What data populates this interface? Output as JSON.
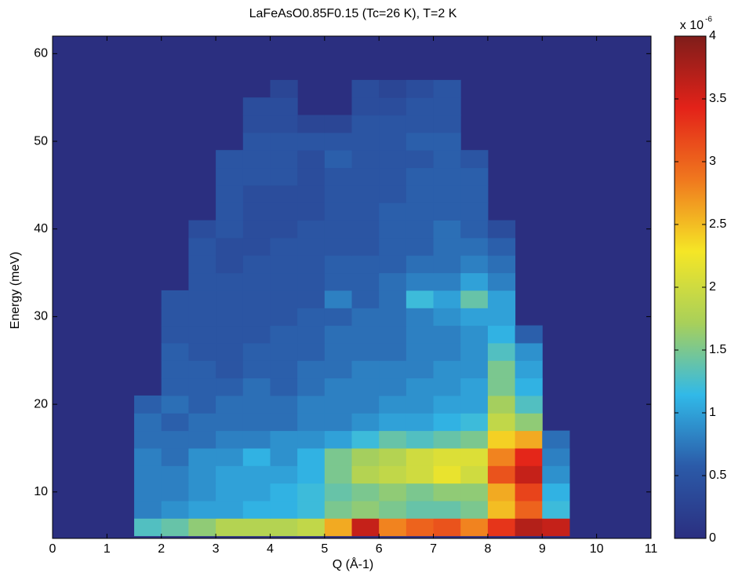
{
  "chart_data": {
    "type": "heatmap",
    "title": "LaFeAsO0.85F0.15 (Tc=26 K), T=2 K",
    "xlabel": "Q (Å-1)",
    "ylabel": "Energy (meV)",
    "xlim": [
      0,
      11
    ],
    "xticks": [
      0,
      1,
      2,
      3,
      4,
      5,
      6,
      7,
      8,
      9,
      10,
      11
    ],
    "ylim": [
      4.7,
      62
    ],
    "yticks": [
      10,
      20,
      30,
      40,
      50,
      60
    ],
    "x": [
      1.75,
      2.25,
      2.75,
      3.25,
      3.75,
      4.25,
      4.75,
      5.25,
      5.75,
      6.25,
      6.75,
      7.25,
      7.75,
      8.25,
      8.75,
      9.25
    ],
    "y": [
      6,
      8,
      10,
      12,
      14,
      16,
      18,
      20,
      22,
      24,
      26,
      28,
      30,
      32,
      34,
      36,
      38,
      40,
      42,
      44,
      46,
      48,
      50,
      52,
      54,
      56
    ],
    "z": [
      [
        1.3,
        1.4,
        1.6,
        1.8,
        1.8,
        1.8,
        1.9,
        2.6,
        3.6,
        2.8,
        3.0,
        3.1,
        2.8,
        3.3,
        3.7,
        3.6
      ],
      [
        0.8,
        0.9,
        1.0,
        1.0,
        1.1,
        1.1,
        1.2,
        1.5,
        1.6,
        1.5,
        1.4,
        1.4,
        1.5,
        2.5,
        3.0,
        1.2
      ],
      [
        0.8,
        0.8,
        0.9,
        1.0,
        1.0,
        1.1,
        1.2,
        1.4,
        1.5,
        1.6,
        1.5,
        1.6,
        1.6,
        2.6,
        3.2,
        1.1
      ],
      [
        0.8,
        0.8,
        0.9,
        1.0,
        1.0,
        1.0,
        1.1,
        1.5,
        1.8,
        1.9,
        2.0,
        2.2,
        2.0,
        3.1,
        3.6,
        0.9
      ],
      [
        0.8,
        0.7,
        0.9,
        0.9,
        1.1,
        0.9,
        1.1,
        1.5,
        1.7,
        1.8,
        2.0,
        2.1,
        2.1,
        2.8,
        3.4,
        0.8
      ],
      [
        0.7,
        0.7,
        0.7,
        0.8,
        0.8,
        0.9,
        0.9,
        1.0,
        1.2,
        1.4,
        1.3,
        1.4,
        1.5,
        2.4,
        2.6,
        0.7
      ],
      [
        0.7,
        0.6,
        0.7,
        0.7,
        0.7,
        0.7,
        0.8,
        0.8,
        0.9,
        1.0,
        1.0,
        1.1,
        1.2,
        1.9,
        1.6,
        null
      ],
      [
        0.6,
        0.7,
        0.6,
        0.7,
        0.7,
        0.7,
        0.8,
        0.8,
        0.8,
        0.9,
        0.9,
        1.0,
        1.0,
        1.7,
        1.3,
        null
      ],
      [
        null,
        0.6,
        0.6,
        0.6,
        0.7,
        0.6,
        0.7,
        0.8,
        0.8,
        0.8,
        0.9,
        0.9,
        1.0,
        1.5,
        1.1,
        null
      ],
      [
        null,
        0.6,
        0.6,
        0.5,
        0.6,
        0.6,
        0.7,
        0.7,
        0.8,
        0.8,
        0.8,
        0.9,
        0.9,
        1.5,
        1.0,
        null
      ],
      [
        null,
        0.6,
        0.5,
        0.5,
        0.6,
        0.6,
        0.6,
        0.7,
        0.7,
        0.7,
        0.8,
        0.8,
        0.9,
        1.3,
        0.9,
        null
      ],
      [
        null,
        0.5,
        0.5,
        0.5,
        0.5,
        0.6,
        0.6,
        0.7,
        0.7,
        0.7,
        0.8,
        0.8,
        0.9,
        1.1,
        0.6,
        null
      ],
      [
        null,
        0.5,
        0.5,
        0.5,
        0.5,
        0.5,
        0.6,
        0.6,
        0.7,
        0.7,
        0.8,
        0.9,
        1.0,
        1.0,
        null,
        null
      ],
      [
        null,
        0.5,
        0.5,
        0.5,
        0.5,
        0.5,
        0.5,
        0.8,
        0.6,
        0.7,
        1.2,
        1.0,
        1.4,
        1.0,
        null,
        null
      ],
      [
        null,
        null,
        0.5,
        0.5,
        0.5,
        0.5,
        0.5,
        0.6,
        0.6,
        0.7,
        0.8,
        0.8,
        1.0,
        0.8,
        null,
        null
      ],
      [
        null,
        null,
        0.5,
        0.4,
        0.5,
        0.5,
        0.5,
        0.6,
        0.6,
        0.6,
        0.7,
        0.7,
        0.8,
        0.7,
        null,
        null
      ],
      [
        null,
        null,
        0.5,
        0.4,
        0.4,
        0.5,
        0.5,
        0.5,
        0.5,
        0.6,
        0.6,
        0.7,
        0.7,
        0.6,
        null,
        null
      ],
      [
        null,
        null,
        0.4,
        0.5,
        0.4,
        0.4,
        0.5,
        0.5,
        0.5,
        0.6,
        0.6,
        0.7,
        0.6,
        0.4,
        null,
        null
      ],
      [
        null,
        null,
        null,
        0.5,
        0.4,
        0.4,
        0.4,
        0.5,
        0.5,
        0.6,
        0.6,
        0.6,
        0.6,
        null,
        null,
        null
      ],
      [
        null,
        null,
        null,
        0.5,
        0.4,
        0.4,
        0.4,
        0.5,
        0.5,
        0.5,
        0.6,
        0.6,
        0.6,
        null,
        null,
        null
      ],
      [
        null,
        null,
        null,
        0.5,
        0.5,
        0.5,
        0.4,
        0.5,
        0.5,
        0.5,
        0.6,
        0.6,
        0.6,
        null,
        null,
        null
      ],
      [
        null,
        null,
        null,
        0.5,
        0.5,
        0.5,
        0.4,
        0.6,
        0.5,
        0.5,
        0.5,
        0.6,
        0.5,
        null,
        null,
        null
      ],
      [
        null,
        null,
        null,
        null,
        0.5,
        0.5,
        0.5,
        0.5,
        0.5,
        0.5,
        0.6,
        0.6,
        null,
        null,
        null,
        null
      ],
      [
        null,
        null,
        null,
        null,
        0.4,
        0.4,
        0.3,
        0.3,
        0.5,
        0.5,
        0.5,
        0.5,
        null,
        null,
        null,
        null
      ],
      [
        null,
        null,
        null,
        null,
        0.4,
        0.4,
        null,
        null,
        0.4,
        0.4,
        0.5,
        0.5,
        null,
        null,
        null,
        null
      ],
      [
        null,
        null,
        null,
        null,
        null,
        0.3,
        null,
        null,
        0.4,
        0.3,
        0.4,
        0.5,
        null,
        null,
        null,
        null
      ]
    ],
    "zlim": [
      0,
      4
    ],
    "zticks": [
      0,
      0.5,
      1,
      1.5,
      2,
      2.5,
      3,
      3.5,
      4
    ],
    "colorbar_multiplier": "x 10",
    "colorbar_exponent": "-6",
    "colormap_colors": [
      "#2b2f80",
      "#2b5aa8",
      "#31b9e8",
      "#a8d05a",
      "#f5e626",
      "#f0781e",
      "#e32219",
      "#7f1d1a"
    ],
    "missing_color": "#2b2f80"
  }
}
